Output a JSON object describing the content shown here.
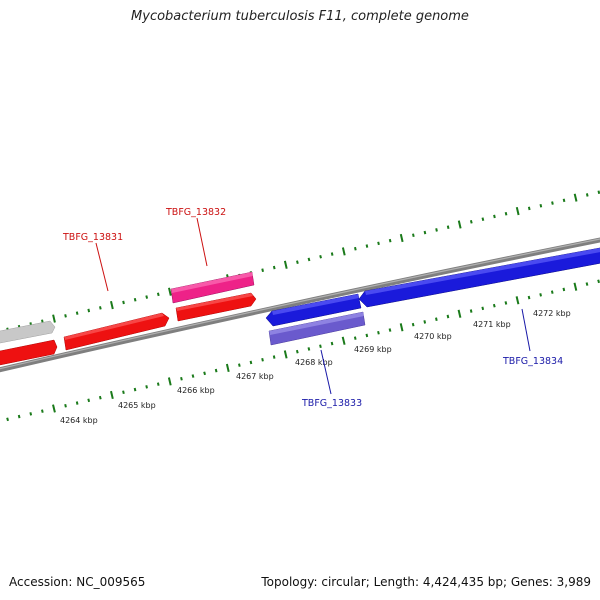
{
  "title": "Mycobacterium tuberculosis F11, complete genome",
  "footer": {
    "accession": "Accession: NC_009565",
    "summary": "Topology: circular; Length: 4,424,435 bp; Genes: 3,989"
  },
  "colors": {
    "backbone": "#7f7f7f",
    "tick": "#1a7a1a",
    "forward_gene": "#ee1111",
    "forward_gene_highlight": "#ee2288",
    "reverse_gene": "#1a1adb",
    "reverse_gene_light": "#6a5acd",
    "other_gene": "#c8c8c8",
    "forward_label": "#cc1111",
    "reverse_label": "#1a1aa8"
  },
  "scale_labels": [
    "4264 kbp",
    "4265 kbp",
    "4266 kbp",
    "4267 kbp",
    "4268 kbp",
    "4269 kbp",
    "4270 kbp",
    "4271 kbp",
    "4272 kbp"
  ],
  "gene_labels": {
    "tbfg_13831": "TBFG_13831",
    "tbfg_13832": "TBFG_13832",
    "tbfg_13833": "TBFG_13833",
    "tbfg_13834": "TBFG_13834"
  }
}
